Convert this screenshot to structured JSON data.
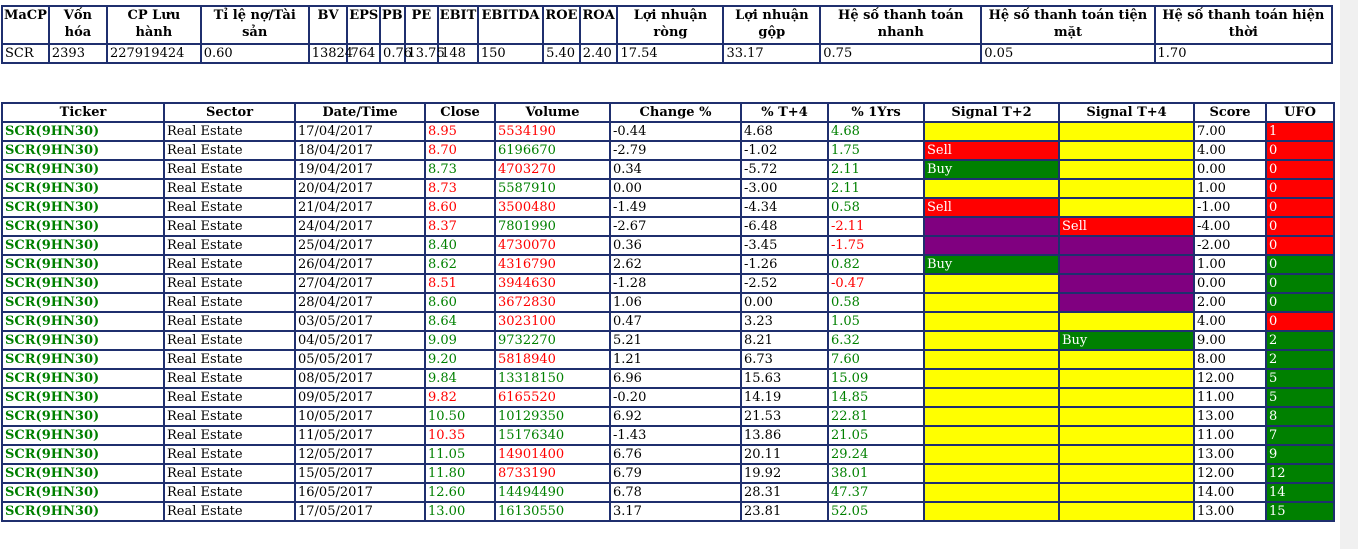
{
  "fund": {
    "headers": [
      "MaCP",
      "Vốn hóa",
      "CP Lưu hành",
      "Tỉ lệ nợ/Tài sản",
      "BV",
      "EPS",
      "PB",
      "PE",
      "EBIT",
      "EBITDA",
      "ROE",
      "ROA",
      "Lợi nhuận ròng",
      "Lợi nhuận gộp",
      "Hệ số thanh toán nhanh",
      "Hệ số thanh toán tiện mặt",
      "Hệ số thanh toán hiện thời"
    ],
    "row": [
      "SCR",
      "2393",
      "227919424",
      "0.60",
      "13824",
      "764",
      "0.76",
      "13.75",
      "148",
      "150",
      "5.40",
      "2.40",
      "17.54",
      "33.17",
      "0.75",
      "0.05",
      "1.70"
    ]
  },
  "price": {
    "headers": [
      "Ticker",
      "Sector",
      "Date/Time",
      "Close",
      "Volume",
      "Change %",
      "% T+4",
      "% 1Yrs",
      "Signal T+2",
      "Signal T+4",
      "Score",
      "UFO"
    ],
    "rows": [
      {
        "ticker": "SCR(9HN30)",
        "sector": "Real Estate",
        "date": "17/04/2017",
        "close": "8.95",
        "close_c": "red",
        "volume": "5534190",
        "vol_c": "red",
        "change": "-0.44",
        "t4": "4.68",
        "y1": "4.68",
        "y1_c": "green",
        "s2": "",
        "s2_c": "yellow",
        "s4": "",
        "s4_c": "yellow",
        "score": "7.00",
        "ufo": "1",
        "ufo_c": "red"
      },
      {
        "ticker": "SCR(9HN30)",
        "sector": "Real Estate",
        "date": "18/04/2017",
        "close": "8.70",
        "close_c": "red",
        "volume": "6196670",
        "vol_c": "green",
        "change": "-2.79",
        "t4": "-1.02",
        "y1": "1.75",
        "y1_c": "green",
        "s2": "Sell",
        "s2_c": "red",
        "s4": "",
        "s4_c": "yellow",
        "score": "4.00",
        "ufo": "0",
        "ufo_c": "red"
      },
      {
        "ticker": "SCR(9HN30)",
        "sector": "Real Estate",
        "date": "19/04/2017",
        "close": "8.73",
        "close_c": "green",
        "volume": "4703270",
        "vol_c": "red",
        "change": "0.34",
        "t4": "-5.72",
        "y1": "2.11",
        "y1_c": "green",
        "s2": "Buy",
        "s2_c": "green",
        "s4": "",
        "s4_c": "yellow",
        "score": "0.00",
        "ufo": "0",
        "ufo_c": "red"
      },
      {
        "ticker": "SCR(9HN30)",
        "sector": "Real Estate",
        "date": "20/04/2017",
        "close": "8.73",
        "close_c": "red",
        "volume": "5587910",
        "vol_c": "green",
        "change": "0.00",
        "t4": "-3.00",
        "y1": "2.11",
        "y1_c": "green",
        "s2": "",
        "s2_c": "yellow",
        "s4": "",
        "s4_c": "yellow",
        "score": "1.00",
        "ufo": "0",
        "ufo_c": "red"
      },
      {
        "ticker": "SCR(9HN30)",
        "sector": "Real Estate",
        "date": "21/04/2017",
        "close": "8.60",
        "close_c": "red",
        "volume": "3500480",
        "vol_c": "red",
        "change": "-1.49",
        "t4": "-4.34",
        "y1": "0.58",
        "y1_c": "green",
        "s2": "Sell",
        "s2_c": "red",
        "s4": "",
        "s4_c": "yellow",
        "score": "-1.00",
        "ufo": "0",
        "ufo_c": "red"
      },
      {
        "ticker": "SCR(9HN30)",
        "sector": "Real Estate",
        "date": "24/04/2017",
        "close": "8.37",
        "close_c": "red",
        "volume": "7801990",
        "vol_c": "green",
        "change": "-2.67",
        "t4": "-6.48",
        "y1": "-2.11",
        "y1_c": "red",
        "s2": "",
        "s2_c": "purple",
        "s4": "Sell",
        "s4_c": "red",
        "score": "-4.00",
        "ufo": "0",
        "ufo_c": "red"
      },
      {
        "ticker": "SCR(9HN30)",
        "sector": "Real Estate",
        "date": "25/04/2017",
        "close": "8.40",
        "close_c": "green",
        "volume": "4730070",
        "vol_c": "red",
        "change": "0.36",
        "t4": "-3.45",
        "y1": "-1.75",
        "y1_c": "red",
        "s2": "",
        "s2_c": "purple",
        "s4": "",
        "s4_c": "purple",
        "score": "-2.00",
        "ufo": "0",
        "ufo_c": "red"
      },
      {
        "ticker": "SCR(9HN30)",
        "sector": "Real Estate",
        "date": "26/04/2017",
        "close": "8.62",
        "close_c": "green",
        "volume": "4316790",
        "vol_c": "red",
        "change": "2.62",
        "t4": "-1.26",
        "y1": "0.82",
        "y1_c": "green",
        "s2": "Buy",
        "s2_c": "green",
        "s4": "",
        "s4_c": "purple",
        "score": "1.00",
        "ufo": "0",
        "ufo_c": "green"
      },
      {
        "ticker": "SCR(9HN30)",
        "sector": "Real Estate",
        "date": "27/04/2017",
        "close": "8.51",
        "close_c": "red",
        "volume": "3944630",
        "vol_c": "red",
        "change": "-1.28",
        "t4": "-2.52",
        "y1": "-0.47",
        "y1_c": "red",
        "s2": "",
        "s2_c": "yellow",
        "s4": "",
        "s4_c": "purple",
        "score": "0.00",
        "ufo": "0",
        "ufo_c": "green"
      },
      {
        "ticker": "SCR(9HN30)",
        "sector": "Real Estate",
        "date": "28/04/2017",
        "close": "8.60",
        "close_c": "green",
        "volume": "3672830",
        "vol_c": "red",
        "change": "1.06",
        "t4": "0.00",
        "y1": "0.58",
        "y1_c": "green",
        "s2": "",
        "s2_c": "yellow",
        "s4": "",
        "s4_c": "purple",
        "score": "2.00",
        "ufo": "0",
        "ufo_c": "green"
      },
      {
        "ticker": "SCR(9HN30)",
        "sector": "Real Estate",
        "date": "03/05/2017",
        "close": "8.64",
        "close_c": "green",
        "volume": "3023100",
        "vol_c": "red",
        "change": "0.47",
        "t4": "3.23",
        "y1": "1.05",
        "y1_c": "green",
        "s2": "",
        "s2_c": "yellow",
        "s4": "",
        "s4_c": "yellow",
        "score": "4.00",
        "ufo": "0",
        "ufo_c": "red"
      },
      {
        "ticker": "SCR(9HN30)",
        "sector": "Real Estate",
        "date": "04/05/2017",
        "close": "9.09",
        "close_c": "green",
        "volume": "9732270",
        "vol_c": "green",
        "change": "5.21",
        "t4": "8.21",
        "y1": "6.32",
        "y1_c": "green",
        "s2": "",
        "s2_c": "yellow",
        "s4": "Buy",
        "s4_c": "green",
        "score": "9.00",
        "ufo": "2",
        "ufo_c": "green"
      },
      {
        "ticker": "SCR(9HN30)",
        "sector": "Real Estate",
        "date": "05/05/2017",
        "close": "9.20",
        "close_c": "green",
        "volume": "5818940",
        "vol_c": "red",
        "change": "1.21",
        "t4": "6.73",
        "y1": "7.60",
        "y1_c": "green",
        "s2": "",
        "s2_c": "yellow",
        "s4": "",
        "s4_c": "yellow",
        "score": "8.00",
        "ufo": "2",
        "ufo_c": "green"
      },
      {
        "ticker": "SCR(9HN30)",
        "sector": "Real Estate",
        "date": "08/05/2017",
        "close": "9.84",
        "close_c": "green",
        "volume": "13318150",
        "vol_c": "green",
        "change": "6.96",
        "t4": "15.63",
        "y1": "15.09",
        "y1_c": "green",
        "s2": "",
        "s2_c": "yellow",
        "s4": "",
        "s4_c": "yellow",
        "score": "12.00",
        "ufo": "5",
        "ufo_c": "green"
      },
      {
        "ticker": "SCR(9HN30)",
        "sector": "Real Estate",
        "date": "09/05/2017",
        "close": "9.82",
        "close_c": "red",
        "volume": "6165520",
        "vol_c": "red",
        "change": "-0.20",
        "t4": "14.19",
        "y1": "14.85",
        "y1_c": "green",
        "s2": "",
        "s2_c": "yellow",
        "s4": "",
        "s4_c": "yellow",
        "score": "11.00",
        "ufo": "5",
        "ufo_c": "green"
      },
      {
        "ticker": "SCR(9HN30)",
        "sector": "Real Estate",
        "date": "10/05/2017",
        "close": "10.50",
        "close_c": "green",
        "volume": "10129350",
        "vol_c": "green",
        "change": "6.92",
        "t4": "21.53",
        "y1": "22.81",
        "y1_c": "green",
        "s2": "",
        "s2_c": "yellow",
        "s4": "",
        "s4_c": "yellow",
        "score": "13.00",
        "ufo": "8",
        "ufo_c": "green"
      },
      {
        "ticker": "SCR(9HN30)",
        "sector": "Real Estate",
        "date": "11/05/2017",
        "close": "10.35",
        "close_c": "red",
        "volume": "15176340",
        "vol_c": "green",
        "change": "-1.43",
        "t4": "13.86",
        "y1": "21.05",
        "y1_c": "green",
        "s2": "",
        "s2_c": "yellow",
        "s4": "",
        "s4_c": "yellow",
        "score": "11.00",
        "ufo": "7",
        "ufo_c": "green"
      },
      {
        "ticker": "SCR(9HN30)",
        "sector": "Real Estate",
        "date": "12/05/2017",
        "close": "11.05",
        "close_c": "green",
        "volume": "14901400",
        "vol_c": "red",
        "change": "6.76",
        "t4": "20.11",
        "y1": "29.24",
        "y1_c": "green",
        "s2": "",
        "s2_c": "yellow",
        "s4": "",
        "s4_c": "yellow",
        "score": "13.00",
        "ufo": "9",
        "ufo_c": "green"
      },
      {
        "ticker": "SCR(9HN30)",
        "sector": "Real Estate",
        "date": "15/05/2017",
        "close": "11.80",
        "close_c": "green",
        "volume": "8733190",
        "vol_c": "red",
        "change": "6.79",
        "t4": "19.92",
        "y1": "38.01",
        "y1_c": "green",
        "s2": "",
        "s2_c": "yellow",
        "s4": "",
        "s4_c": "yellow",
        "score": "12.00",
        "ufo": "12",
        "ufo_c": "green"
      },
      {
        "ticker": "SCR(9HN30)",
        "sector": "Real Estate",
        "date": "16/05/2017",
        "close": "12.60",
        "close_c": "green",
        "volume": "14494490",
        "vol_c": "green",
        "change": "6.78",
        "t4": "28.31",
        "y1": "47.37",
        "y1_c": "green",
        "s2": "",
        "s2_c": "yellow",
        "s4": "",
        "s4_c": "yellow",
        "score": "14.00",
        "ufo": "14",
        "ufo_c": "green"
      },
      {
        "ticker": "SCR(9HN30)",
        "sector": "Real Estate",
        "date": "17/05/2017",
        "close": "13.00",
        "close_c": "green",
        "volume": "16130550",
        "vol_c": "green",
        "change": "3.17",
        "t4": "23.81",
        "y1": "52.05",
        "y1_c": "green",
        "s2": "",
        "s2_c": "yellow",
        "s4": "",
        "s4_c": "yellow",
        "score": "13.00",
        "ufo": "15",
        "ufo_c": "green"
      }
    ]
  }
}
